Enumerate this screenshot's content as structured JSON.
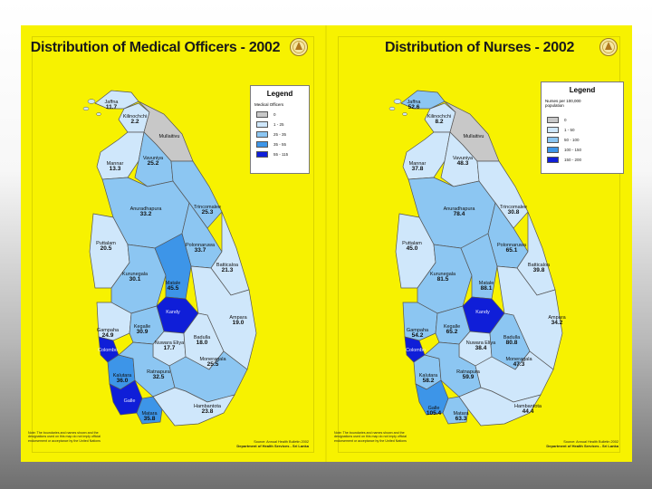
{
  "colors": {
    "background_yellow": "#f7f200",
    "sea_border": "#3a3a3a",
    "district_line": "#555555"
  },
  "maps": [
    {
      "id": "medical",
      "title": "Distribution of Medical Officers - 2002",
      "emblem": "sri-lanka-emblem-icon",
      "legend": {
        "title": "Legend",
        "subtitle": "Medical Officers",
        "classes": [
          {
            "label": "0",
            "color": "#c8c8c8"
          },
          {
            "label": "1 - 25",
            "color": "#cfe7fb"
          },
          {
            "label": "25 - 35",
            "color": "#8cc6f2"
          },
          {
            "label": "35 - 55",
            "color": "#3d95e8"
          },
          {
            "label": "55 - 115",
            "color": "#0f1ed8"
          }
        ]
      },
      "districts": [
        {
          "key": "jaffna",
          "name": "Jaffna",
          "value": "11.7",
          "cls": 1
        },
        {
          "key": "kilinochchi",
          "name": "Kilinochchi",
          "value": "2.2",
          "cls": 1
        },
        {
          "key": "mullaitivu",
          "name": "Mullaitivu",
          "value": "",
          "cls": 0
        },
        {
          "key": "mannar",
          "name": "Mannar",
          "value": "13.3",
          "cls": 1
        },
        {
          "key": "vavuniya",
          "name": "Vavuniya",
          "value": "25.2",
          "cls": 2
        },
        {
          "key": "anuradhapura",
          "name": "Anuradhapura",
          "value": "33.2",
          "cls": 2
        },
        {
          "key": "trincomalee",
          "name": "Trincomalee",
          "value": "25.3",
          "cls": 2
        },
        {
          "key": "puttalam",
          "name": "Puttalam",
          "value": "20.5",
          "cls": 1
        },
        {
          "key": "polonnaruwa",
          "name": "Polonnaruwa",
          "value": "33.7",
          "cls": 2
        },
        {
          "key": "batticaloa",
          "name": "Batticaloa",
          "value": "21.3",
          "cls": 1
        },
        {
          "key": "kurunegala",
          "name": "Kurunegala",
          "value": "30.1",
          "cls": 2
        },
        {
          "key": "matale",
          "name": "Matale",
          "value": "45.5",
          "cls": 3
        },
        {
          "key": "kandy",
          "name": "Kandy",
          "value": "",
          "cls": 4
        },
        {
          "key": "ampara",
          "name": "Ampara",
          "value": "19.0",
          "cls": 1
        },
        {
          "key": "gampaha",
          "name": "Gampaha",
          "value": "24.9",
          "cls": 1
        },
        {
          "key": "kegalle",
          "name": "Kegalle",
          "value": "30.9",
          "cls": 2
        },
        {
          "key": "nuwara_eliya",
          "name": "Nuwara Eliya",
          "value": "17.7",
          "cls": 1
        },
        {
          "key": "badulla",
          "name": "Badulla",
          "value": "18.0",
          "cls": 1
        },
        {
          "key": "colombo",
          "name": "Colombo",
          "value": "",
          "cls": 4
        },
        {
          "key": "kalutara",
          "name": "Kalutara",
          "value": "36.0",
          "cls": 3
        },
        {
          "key": "ratnapura",
          "name": "Ratnapura",
          "value": "32.5",
          "cls": 2
        },
        {
          "key": "moneragala",
          "name": "Moneragala",
          "value": "25.5",
          "cls": 2
        },
        {
          "key": "galle",
          "name": "Galle",
          "value": "",
          "cls": 4
        },
        {
          "key": "matara",
          "name": "Matara",
          "value": "35.8",
          "cls": 3
        },
        {
          "key": "hambantota",
          "name": "Hambantota",
          "value": "23.8",
          "cls": 1
        }
      ],
      "note": "Note: The boundaries and names shown and the designations used on this map do not imply official endorsement or acceptance by the United Nations",
      "source_line": "Source: Annual Health Bulletin 2002",
      "source_org": "Department of Health Services - Sri Lanka"
    },
    {
      "id": "nurses",
      "title": "Distribution of Nurses - 2002",
      "emblem": "sri-lanka-emblem-icon",
      "legend": {
        "title": "Legend",
        "subtitle": "Nurses per 100,000 population",
        "classes": [
          {
            "label": "0",
            "color": "#c8c8c8"
          },
          {
            "label": "1 - 50",
            "color": "#cfe7fb"
          },
          {
            "label": "50 - 100",
            "color": "#8cc6f2"
          },
          {
            "label": "100 - 150",
            "color": "#3d95e8"
          },
          {
            "label": "150 - 200",
            "color": "#0f1ed8"
          }
        ]
      },
      "districts": [
        {
          "key": "jaffna",
          "name": "Jaffna",
          "value": "52.6",
          "cls": 2
        },
        {
          "key": "kilinochchi",
          "name": "Kilinochchi",
          "value": "8.2",
          "cls": 1
        },
        {
          "key": "mullaitivu",
          "name": "Mullaitivu",
          "value": "",
          "cls": 0
        },
        {
          "key": "mannar",
          "name": "Mannar",
          "value": "37.8",
          "cls": 1
        },
        {
          "key": "vavuniya",
          "name": "Vavuniya",
          "value": "48.3",
          "cls": 1
        },
        {
          "key": "anuradhapura",
          "name": "Anuradhapura",
          "value": "78.4",
          "cls": 2
        },
        {
          "key": "trincomalee",
          "name": "Trincomalee",
          "value": "30.8",
          "cls": 1
        },
        {
          "key": "puttalam",
          "name": "Puttalam",
          "value": "45.0",
          "cls": 1
        },
        {
          "key": "polonnaruwa",
          "name": "Polonnaruwa",
          "value": "65.1",
          "cls": 2
        },
        {
          "key": "batticaloa",
          "name": "Batticaloa",
          "value": "39.8",
          "cls": 1
        },
        {
          "key": "kurunegala",
          "name": "Kurunegala",
          "value": "81.5",
          "cls": 2
        },
        {
          "key": "matale",
          "name": "Matale",
          "value": "88.1",
          "cls": 2
        },
        {
          "key": "kandy",
          "name": "Kandy",
          "value": "",
          "cls": 4
        },
        {
          "key": "ampara",
          "name": "Ampara",
          "value": "34.2",
          "cls": 1
        },
        {
          "key": "gampaha",
          "name": "Gampaha",
          "value": "54.2",
          "cls": 2
        },
        {
          "key": "kegalle",
          "name": "Kegalle",
          "value": "65.2",
          "cls": 2
        },
        {
          "key": "nuwara_eliya",
          "name": "Nuwara Eliya",
          "value": "38.4",
          "cls": 1
        },
        {
          "key": "badulla",
          "name": "Badulla",
          "value": "80.8",
          "cls": 2
        },
        {
          "key": "colombo",
          "name": "Colombo",
          "value": "",
          "cls": 4
        },
        {
          "key": "kalutara",
          "name": "Kalutara",
          "value": "58.2",
          "cls": 2
        },
        {
          "key": "ratnapura",
          "name": "Ratnapura",
          "value": "59.9",
          "cls": 2
        },
        {
          "key": "moneragala",
          "name": "Moneragala",
          "value": "47.3",
          "cls": 1
        },
        {
          "key": "galle",
          "name": "Galle",
          "value": "105.4",
          "cls": 3
        },
        {
          "key": "matara",
          "name": "Matara",
          "value": "63.3",
          "cls": 2
        },
        {
          "key": "hambantota",
          "name": "Hambantota",
          "value": "44.4",
          "cls": 1
        }
      ],
      "note": "Note: The boundaries and names shown and the designations used on this map do not imply official endorsement or acceptance by the United Nations",
      "source_line": "Source: Annual Health Bulletin 2002",
      "source_org": "Department of Health Services - Sri Lanka"
    }
  ]
}
